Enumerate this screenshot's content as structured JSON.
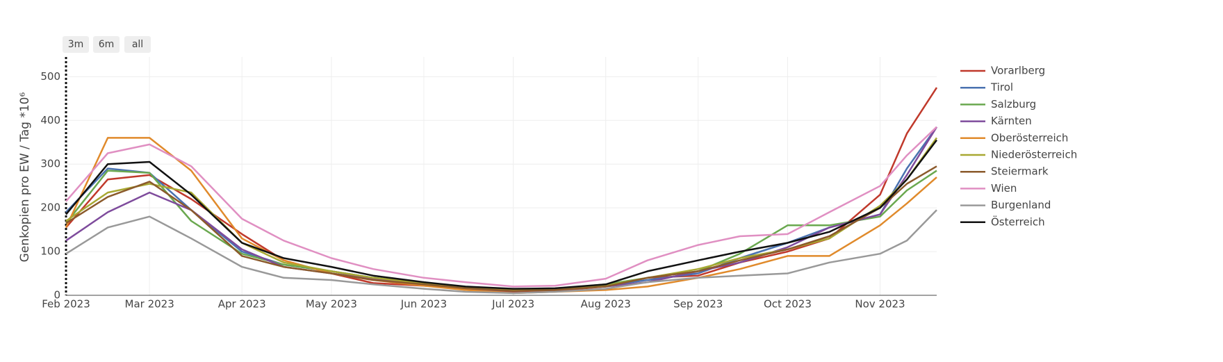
{
  "chart_data": {
    "type": "line",
    "y_label": "Genkopien pro EW / Tag *10⁶",
    "x": [
      "2023-02-01",
      "2023-02-15",
      "2023-03-01",
      "2023-03-15",
      "2023-04-01",
      "2023-04-15",
      "2023-05-01",
      "2023-05-15",
      "2023-06-01",
      "2023-06-15",
      "2023-07-01",
      "2023-07-15",
      "2023-08-01",
      "2023-08-15",
      "2023-09-01",
      "2023-09-15",
      "2023-10-01",
      "2023-10-15",
      "2023-11-01",
      "2023-11-10",
      "2023-11-20"
    ],
    "xlim": [
      "2023-02-01",
      "2023-11-20"
    ],
    "xticks": [
      {
        "value": "2023-02-01",
        "label": "Feb 2023"
      },
      {
        "value": "2023-03-01",
        "label": "Mar 2023"
      },
      {
        "value": "2023-04-01",
        "label": "Apr 2023"
      },
      {
        "value": "2023-05-01",
        "label": "May 2023"
      },
      {
        "value": "2023-06-01",
        "label": "Jun 2023"
      },
      {
        "value": "2023-07-01",
        "label": "Jul 2023"
      },
      {
        "value": "2023-08-01",
        "label": "Aug 2023"
      },
      {
        "value": "2023-09-01",
        "label": "Sep 2023"
      },
      {
        "value": "2023-10-01",
        "label": "Oct 2023"
      },
      {
        "value": "2023-11-01",
        "label": "Nov 2023"
      }
    ],
    "ylim": [
      0,
      545
    ],
    "yticks": [
      0,
      100,
      200,
      300,
      400,
      500
    ],
    "grid": true,
    "legend": "right",
    "series": [
      {
        "name": "Vorarlberg",
        "color": "#c0392b",
        "values": [
          155,
          265,
          275,
          220,
          140,
          80,
          50,
          28,
          22,
          15,
          8,
          10,
          20,
          40,
          45,
          75,
          100,
          130,
          230,
          370,
          475
        ]
      },
      {
        "name": "Tirol",
        "color": "#4a72b0",
        "values": [
          190,
          290,
          280,
          195,
          100,
          70,
          55,
          40,
          28,
          18,
          12,
          14,
          22,
          35,
          50,
          85,
          120,
          155,
          185,
          290,
          385
        ]
      },
      {
        "name": "Salzburg",
        "color": "#6aa84f",
        "values": [
          165,
          285,
          280,
          170,
          95,
          70,
          55,
          40,
          28,
          18,
          12,
          15,
          25,
          40,
          55,
          95,
          160,
          160,
          180,
          240,
          285
        ]
      },
      {
        "name": "Kärnten",
        "color": "#7e4b9c",
        "values": [
          125,
          190,
          235,
          195,
          105,
          65,
          50,
          38,
          25,
          15,
          10,
          12,
          20,
          30,
          55,
          75,
          110,
          155,
          185,
          275,
          385
        ]
      },
      {
        "name": "Oberösterreich",
        "color": "#e08a2b",
        "values": [
          155,
          360,
          360,
          285,
          130,
          80,
          50,
          35,
          22,
          12,
          5,
          8,
          12,
          20,
          40,
          60,
          90,
          90,
          160,
          210,
          270
        ]
      },
      {
        "name": "Niederösterreich",
        "color": "#a8a832",
        "values": [
          170,
          235,
          255,
          235,
          120,
          75,
          55,
          40,
          28,
          18,
          12,
          15,
          22,
          40,
          60,
          85,
          105,
          130,
          205,
          265,
          360
        ]
      },
      {
        "name": "Steiermark",
        "color": "#8b5a2b",
        "values": [
          165,
          225,
          260,
          195,
          90,
          65,
          50,
          35,
          25,
          16,
          10,
          12,
          20,
          40,
          55,
          80,
          105,
          135,
          200,
          255,
          295
        ]
      },
      {
        "name": "Wien",
        "color": "#e08fc2",
        "values": [
          215,
          325,
          345,
          295,
          175,
          125,
          85,
          60,
          40,
          30,
          20,
          22,
          38,
          80,
          115,
          135,
          140,
          190,
          250,
          320,
          385
        ]
      },
      {
        "name": "Burgenland",
        "color": "#999999",
        "values": [
          95,
          155,
          180,
          130,
          65,
          40,
          35,
          25,
          15,
          8,
          5,
          8,
          15,
          30,
          40,
          45,
          50,
          75,
          95,
          125,
          195
        ]
      },
      {
        "name": "Österreich",
        "color": "#111111",
        "values": [
          185,
          300,
          305,
          230,
          120,
          85,
          65,
          45,
          30,
          20,
          15,
          16,
          25,
          55,
          80,
          100,
          120,
          145,
          200,
          265,
          355
        ]
      }
    ]
  },
  "range_buttons": [
    "3m",
    "6m",
    "all"
  ]
}
